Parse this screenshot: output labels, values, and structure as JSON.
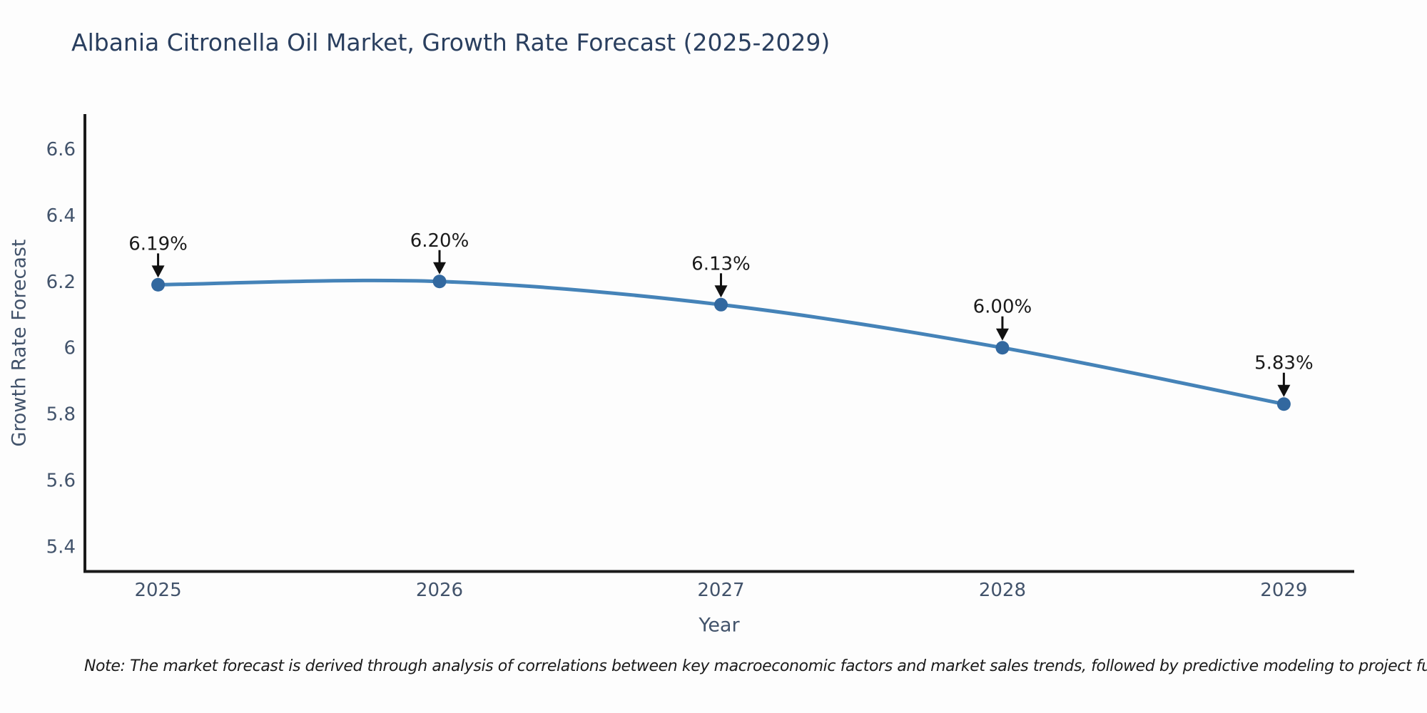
{
  "title": "Albania Citronella Oil Market, Growth Rate Forecast (2025-2029)",
  "note": "Note: The market forecast is derived through analysis of correlations between key macroeconomic factors and market sales trends, followed by predictive modeling to project future sales",
  "colors": {
    "title": "#2a3f5f",
    "axis_line": "#1a1a1a",
    "tick_labels": "#42536b",
    "series_line": "#4583b8",
    "marker_fill": "#32689f",
    "annotation_text": "#1a1a1a",
    "annotation_arrow": "#111111",
    "background": "#fdfdfd"
  },
  "chart_data": {
    "type": "line",
    "title": "Albania Citronella Oil Market, Growth Rate Forecast (2025-2029)",
    "x": [
      2025,
      2026,
      2027,
      2028,
      2029
    ],
    "x_tick_labels": [
      "2025",
      "2026",
      "2027",
      "2028",
      "2029"
    ],
    "series": [
      {
        "name": "Growth Rate Forecast",
        "values": [
          6.19,
          6.2,
          6.13,
          6.0,
          5.83
        ],
        "shape": "spline",
        "line_width": 5,
        "marker_size": 19
      }
    ],
    "point_labels": [
      "6.19%",
      "6.20%",
      "6.13%",
      "6.00%",
      "5.83%"
    ],
    "xlabel": "Year",
    "ylabel": "Growth Rate Forecast",
    "yticks": [
      5.4,
      5.6,
      5.8,
      6,
      6.2,
      6.4,
      6.6
    ],
    "y_tick_labels": [
      "5.4",
      "5.6",
      "5.8",
      "6",
      "6.2",
      "6.4",
      "6.6"
    ],
    "xlim": [
      2024.74,
      2029.25
    ],
    "ylim": [
      5.325,
      6.705
    ],
    "grid": false,
    "legend": "none",
    "annotations_above_points": true
  }
}
